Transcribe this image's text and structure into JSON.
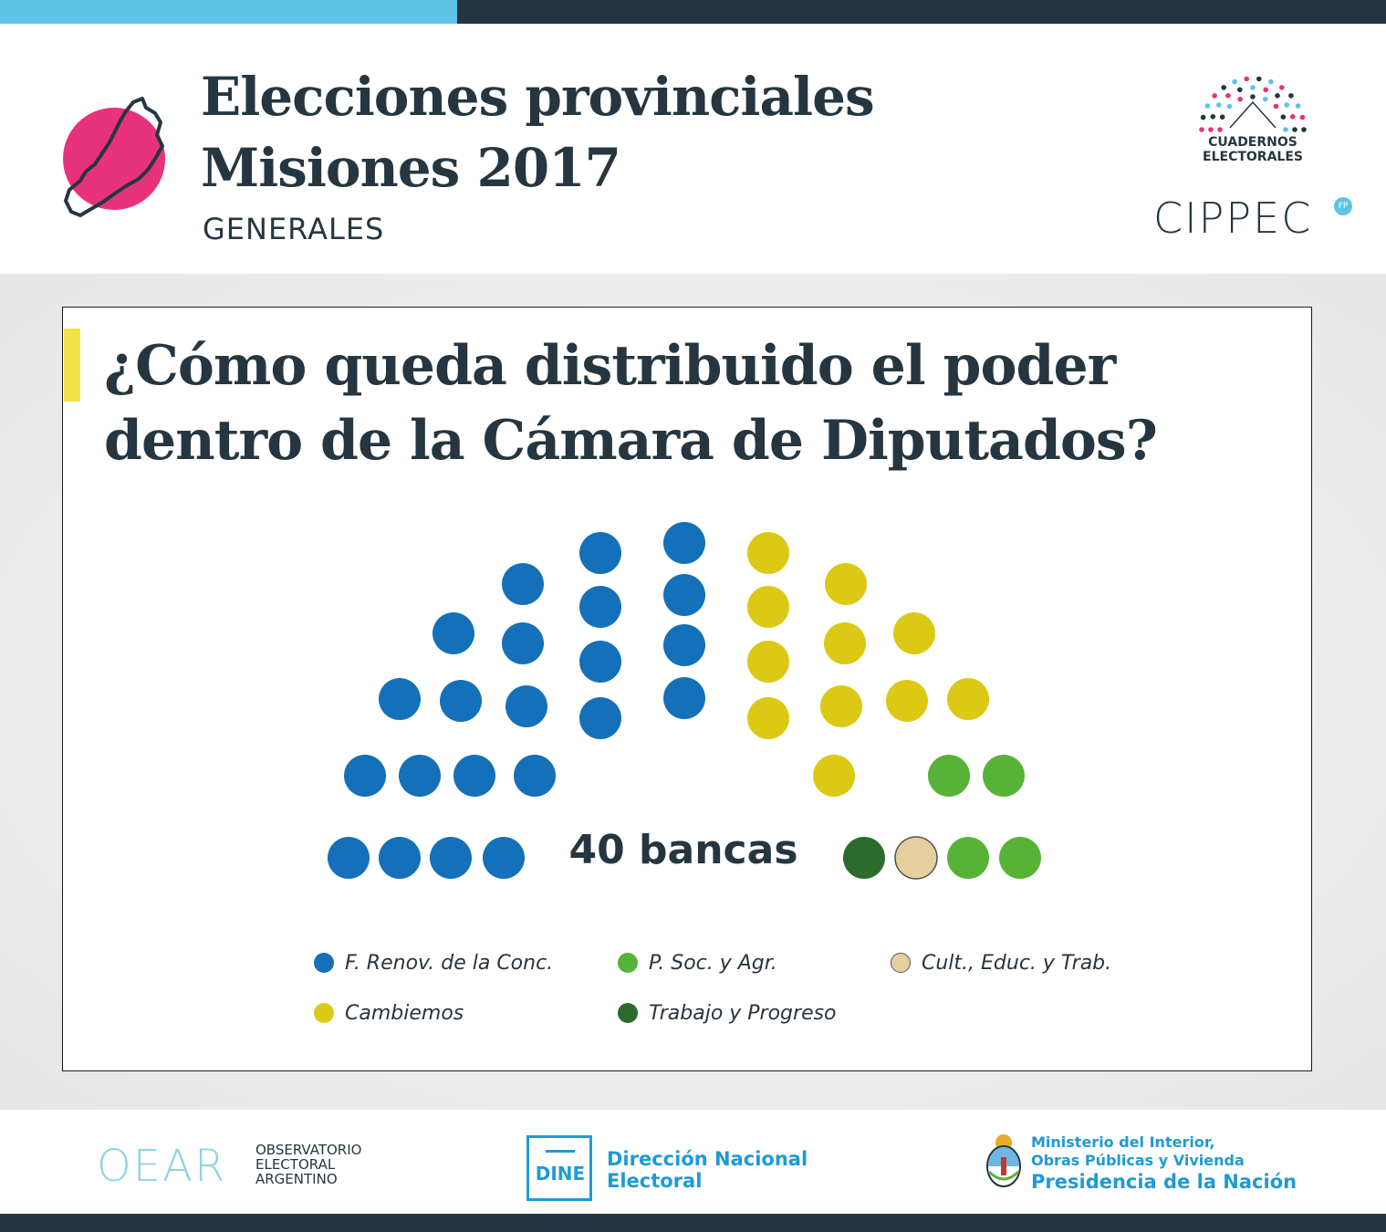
{
  "header": {
    "title_line1": "Elecciones provinciales",
    "title_line2": "Misiones 2017",
    "subtitle": "GENERALES",
    "logo_cuadernos_line1": "CUADERNOS",
    "logo_cuadernos_line2": "ELECTORALES",
    "logo_cippec": "CIPPEC",
    "logo_cippec_badge": "FP"
  },
  "question": {
    "line1": "¿Cómo queda distribuido el poder",
    "line2": "dentro de la Cámara de Diputados?"
  },
  "chart_data": {
    "type": "parliament",
    "total_label": "40 bancas",
    "total_seats": 40,
    "series": [
      {
        "name": "F. Renov. de la Conc.",
        "seats": 22,
        "color": "#1470b8"
      },
      {
        "name": "Cambiemos",
        "seats": 11,
        "color": "#dbc915"
      },
      {
        "name": "P. Soc. y Agr.",
        "seats": 5,
        "color": "#57b337"
      },
      {
        "name": "Trabajo y Progreso",
        "seats": 1,
        "color": "#2b6b2c"
      },
      {
        "name": "Cult., Educ. y Trab.",
        "seats": 1,
        "color": "#e6cf9f"
      }
    ]
  },
  "footer": {
    "oear_mark": "OEAR",
    "oear_line1": "OBSERVATORIO",
    "oear_line2": "ELECTORAL",
    "oear_line3": "ARGENTINO",
    "dine_mark": "DINE",
    "dine_line1": "Dirección Nacional",
    "dine_line2": "Electoral",
    "ministry_line1": "Ministerio del Interior,",
    "ministry_line2": "Obras Públicas y Vivienda",
    "ministry_line3": "Presidencia de la Nación"
  },
  "colors": {
    "dark": "#263640",
    "accent_blue": "#5ec4e6",
    "accent_pink": "#e8327b",
    "accent_yellow": "#f2e34a",
    "brand_blue": "#1e9ad6"
  },
  "icons": {
    "province_map": "misiones-map-icon",
    "hemicycle": "hemicycle-logo-icon",
    "shield": "national-shield-icon"
  }
}
